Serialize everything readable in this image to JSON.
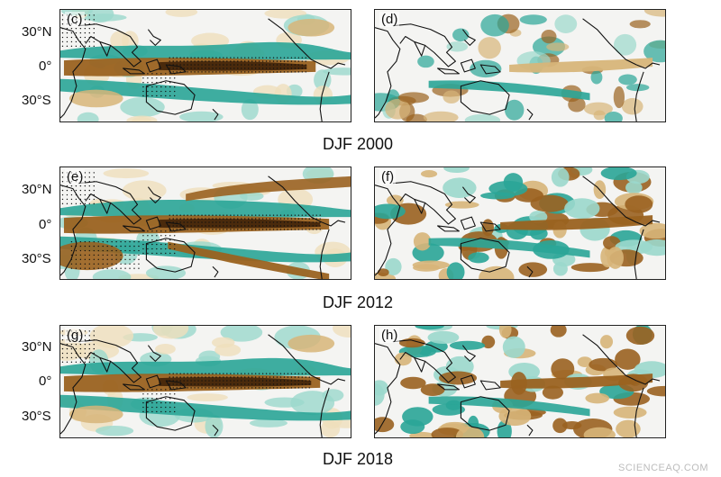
{
  "latitude_labels": {
    "north": "30°N",
    "equator": "0°",
    "south": "30°S"
  },
  "panels": [
    {
      "label": "(c)",
      "stippled": true
    },
    {
      "label": "(d)",
      "stippled": false
    },
    {
      "label": "(e)",
      "stippled": true
    },
    {
      "label": "(f)",
      "stippled": false
    },
    {
      "label": "(g)",
      "stippled": true
    },
    {
      "label": "(h)",
      "stippled": false
    }
  ],
  "captions": [
    "DJF 2000",
    "DJF 2012",
    "DJF 2018"
  ],
  "watermark": "SCIENCEAQ.COM",
  "colors": {
    "brown_dark": "#4a2a0c",
    "brown": "#9a6220",
    "brown_light": "#d7b579",
    "tan": "#efdfbc",
    "teal_dark": "#0f6e66",
    "teal": "#2aa597",
    "teal_light": "#9bd8cc",
    "land_outline": "#111111"
  }
}
